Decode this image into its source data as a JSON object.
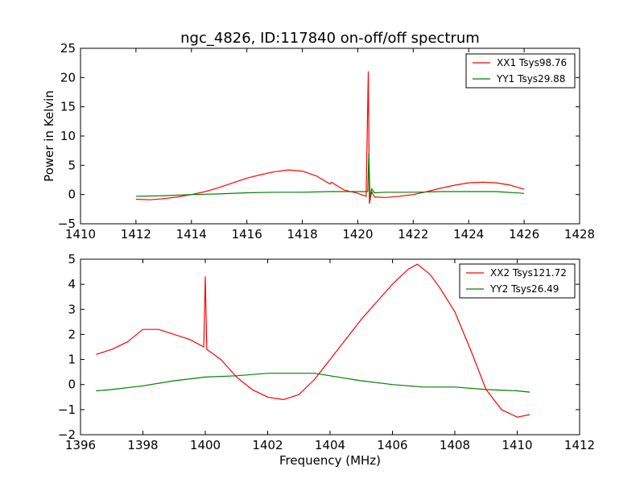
{
  "chart_data": [
    {
      "type": "line",
      "title": "ngc_4826, ID:117840 on-off/off spectrum",
      "xlabel": "",
      "ylabel": "Power in Kelvin",
      "xlim": [
        1410,
        1428
      ],
      "ylim": [
        -5,
        25
      ],
      "xticks": [
        "1410",
        "1412",
        "1414",
        "1416",
        "1418",
        "1420",
        "1422",
        "1424",
        "1426",
        "1428"
      ],
      "yticks": [
        "−5",
        "0",
        "5",
        "10",
        "15",
        "20",
        "25"
      ],
      "legend_position": "top-right",
      "grid": false,
      "series": [
        {
          "name": "XX1 Tsys98.76",
          "color": "#ff0000",
          "points": [
            [
              1412.0,
              -0.8
            ],
            [
              1412.5,
              -0.9
            ],
            [
              1413.0,
              -0.7
            ],
            [
              1413.5,
              -0.4
            ],
            [
              1414.0,
              0.0
            ],
            [
              1414.5,
              0.5
            ],
            [
              1415.0,
              1.2
            ],
            [
              1415.5,
              2.0
            ],
            [
              1416.0,
              2.8
            ],
            [
              1416.5,
              3.4
            ],
            [
              1417.0,
              3.9
            ],
            [
              1417.5,
              4.2
            ],
            [
              1418.0,
              4.0
            ],
            [
              1418.5,
              3.2
            ],
            [
              1419.0,
              1.8
            ],
            [
              1419.05,
              2.1
            ],
            [
              1419.5,
              0.8
            ],
            [
              1420.0,
              0.2
            ],
            [
              1420.3,
              -0.3
            ],
            [
              1420.38,
              21.0
            ],
            [
              1420.42,
              -1.5
            ],
            [
              1420.5,
              0.5
            ],
            [
              1420.6,
              -0.4
            ],
            [
              1421.0,
              -0.5
            ],
            [
              1421.5,
              -0.3
            ],
            [
              1422.0,
              0.0
            ],
            [
              1422.5,
              0.5
            ],
            [
              1423.0,
              1.1
            ],
            [
              1423.5,
              1.6
            ],
            [
              1424.0,
              2.0
            ],
            [
              1424.5,
              2.1
            ],
            [
              1425.0,
              2.0
            ],
            [
              1425.5,
              1.6
            ],
            [
              1426.0,
              0.9
            ]
          ]
        },
        {
          "name": "YY1 Tsys29.88",
          "color": "#008000",
          "points": [
            [
              1412.0,
              -0.3
            ],
            [
              1413.0,
              -0.2
            ],
            [
              1414.0,
              0.0
            ],
            [
              1415.0,
              0.1
            ],
            [
              1416.0,
              0.3
            ],
            [
              1417.0,
              0.4
            ],
            [
              1418.0,
              0.4
            ],
            [
              1419.0,
              0.5
            ],
            [
              1420.0,
              0.5
            ],
            [
              1420.36,
              0.5
            ],
            [
              1420.4,
              7.0
            ],
            [
              1420.44,
              -0.5
            ],
            [
              1420.5,
              1.0
            ],
            [
              1420.6,
              0.3
            ],
            [
              1421.0,
              0.4
            ],
            [
              1422.0,
              0.4
            ],
            [
              1423.0,
              0.5
            ],
            [
              1424.0,
              0.5
            ],
            [
              1425.0,
              0.5
            ],
            [
              1426.0,
              0.2
            ]
          ]
        }
      ]
    },
    {
      "type": "line",
      "title": "",
      "xlabel": "Frequency (MHz)",
      "ylabel": "",
      "xlim": [
        1396,
        1412
      ],
      "ylim": [
        -2,
        5
      ],
      "xticks": [
        "1396",
        "1398",
        "1400",
        "1402",
        "1404",
        "1406",
        "1408",
        "1410",
        "1412"
      ],
      "yticks": [
        "−2",
        "−1",
        "0",
        "1",
        "2",
        "3",
        "4",
        "5"
      ],
      "legend_position": "top-right",
      "grid": false,
      "series": [
        {
          "name": "XX2 Tsys121.72",
          "color": "#ff0000",
          "points": [
            [
              1396.5,
              1.2
            ],
            [
              1397.0,
              1.4
            ],
            [
              1397.5,
              1.7
            ],
            [
              1398.0,
              2.2
            ],
            [
              1398.5,
              2.2
            ],
            [
              1399.0,
              2.0
            ],
            [
              1399.5,
              1.8
            ],
            [
              1399.95,
              1.5
            ],
            [
              1400.0,
              4.3
            ],
            [
              1400.05,
              1.4
            ],
            [
              1400.5,
              1.0
            ],
            [
              1401.0,
              0.3
            ],
            [
              1401.5,
              -0.2
            ],
            [
              1402.0,
              -0.5
            ],
            [
              1402.5,
              -0.6
            ],
            [
              1403.0,
              -0.4
            ],
            [
              1403.5,
              0.2
            ],
            [
              1404.0,
              1.0
            ],
            [
              1404.5,
              1.8
            ],
            [
              1405.0,
              2.6
            ],
            [
              1405.5,
              3.3
            ],
            [
              1406.0,
              4.0
            ],
            [
              1406.5,
              4.6
            ],
            [
              1406.8,
              4.8
            ],
            [
              1407.2,
              4.4
            ],
            [
              1407.5,
              3.9
            ],
            [
              1408.0,
              2.9
            ],
            [
              1408.5,
              1.4
            ],
            [
              1409.0,
              -0.2
            ],
            [
              1409.5,
              -1.0
            ],
            [
              1410.0,
              -1.3
            ],
            [
              1410.4,
              -1.2
            ]
          ]
        },
        {
          "name": "YY2 Tsys26.49",
          "color": "#008000",
          "points": [
            [
              1396.5,
              -0.25
            ],
            [
              1397.0,
              -0.2
            ],
            [
              1398.0,
              -0.05
            ],
            [
              1399.0,
              0.15
            ],
            [
              1400.0,
              0.3
            ],
            [
              1401.0,
              0.35
            ],
            [
              1402.0,
              0.45
            ],
            [
              1403.0,
              0.45
            ],
            [
              1403.5,
              0.45
            ],
            [
              1404.0,
              0.35
            ],
            [
              1405.0,
              0.15
            ],
            [
              1406.0,
              0.0
            ],
            [
              1407.0,
              -0.1
            ],
            [
              1408.0,
              -0.1
            ],
            [
              1409.0,
              -0.2
            ],
            [
              1410.0,
              -0.25
            ],
            [
              1410.4,
              -0.3
            ]
          ]
        }
      ]
    }
  ]
}
